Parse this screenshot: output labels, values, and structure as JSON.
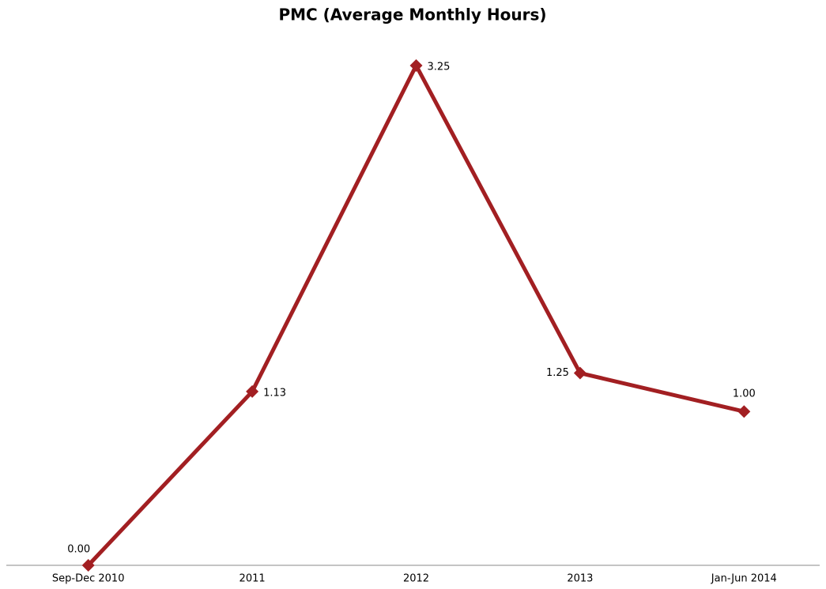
{
  "chart_data": {
    "type": "line",
    "title": "PMC (Average Monthly Hours)",
    "categories": [
      "Sep-Dec 2010",
      "2011",
      "2012",
      "2013",
      "Jan-Jun 2014"
    ],
    "series": [
      {
        "name": "PMC",
        "color": "#a21f22",
        "values": [
          0,
          1.13,
          3.25,
          1.25,
          1.0
        ],
        "value_labels": [
          "0.00",
          "1.13",
          "3.25",
          "1.25",
          "1.00"
        ]
      }
    ]
  }
}
